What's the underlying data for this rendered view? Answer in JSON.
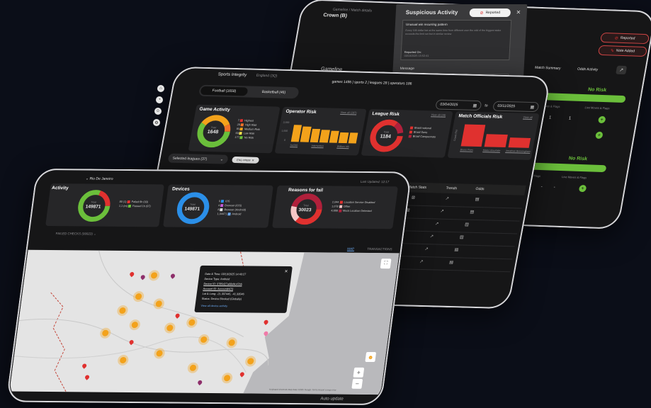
{
  "back": {
    "breadcrumb": "Gameline / Match details",
    "match_title": "Crown (B)",
    "section_gameline": "Gameline",
    "tabs": [
      "Match Summary",
      "Odds Activity"
    ],
    "badge_reported": "Reported",
    "badge_note_added": "Note Added",
    "no_risk": "No Risk",
    "col_left": "Live Moves & Flags",
    "col_right": "Live Moves & Flags",
    "values": [
      "1",
      "1",
      "1",
      "1",
      "-",
      "-",
      "-",
      "-"
    ]
  },
  "modal": {
    "title": "Suspicious Activity",
    "status": "Reported",
    "subtitle": "Unusual win recurring pattern",
    "body": "Every 100 dollar bet at the same time from different user the odd of the biggest stake exceeds the limit set but in similar review",
    "reported_on_label": "Reported On:",
    "reported_on_value": "03/10/2025 15:52:41",
    "message_label": "Message"
  },
  "mid": {
    "app_title": "Sports Integrity",
    "league_filter": "England (3Q)",
    "stats_line": "games 1496 | sports 2 | leagues 28 | operators 186",
    "toggle": [
      {
        "label": "Football (1658)"
      },
      {
        "label": "Basketball (46)"
      }
    ],
    "date_from": "03/04/2025",
    "date_to_label": "to",
    "date_to": "03/11/2025",
    "game_activity": {
      "title": "Game Activity",
      "total_label": "Total",
      "total": "1648",
      "legend": [
        {
          "count": "7",
          "label": "Highest",
          "color": "#e0312f"
        },
        {
          "count": "28",
          "label": "High Risk",
          "color": "#f0722a"
        },
        {
          "count": "93",
          "label": "Medium Risk",
          "color": "#f3a21b"
        },
        {
          "count": "69",
          "label": "Low Risk",
          "color": "#f4e04d"
        },
        {
          "count": "177",
          "label": "No Risk",
          "color": "#6bbf3b"
        }
      ]
    },
    "operator_risk": {
      "title": "Operator Risk",
      "view_all": "View all (187)",
      "ticks": [
        "2,000",
        "1,000",
        "0"
      ],
      "bar_labels": [
        "bet365",
        "Interwetten",
        "William Hill"
      ]
    },
    "league_risk": {
      "title": "League Risk",
      "view_all": "View all (28)",
      "total_label": "Total",
      "total": "1184",
      "legend": [
        "Brasil national",
        "Brasil Serie",
        "Brasil Campeonato"
      ]
    },
    "officials_risk": {
      "title": "Match Officials Risk",
      "view_all": "View all",
      "axis": "Count (%)",
      "bar_labels": [
        "Bruno Pires",
        "Mateo Bourlotte",
        "Jonathan Benningham"
      ]
    },
    "selected_leagues": "Selected leagues (37)",
    "chip": "ENG PREM",
    "table_headers": [
      "Match Stats",
      "Trends",
      "Odds"
    ]
  },
  "front": {
    "city_filter": "Rio De Janeiro",
    "activity": {
      "title": "Activity",
      "total_label": "Total",
      "total": "149871",
      "legend": [
        {
          "count": "80 (1)",
          "label": "Failed 6h (03)",
          "color": "#e0312f"
        },
        {
          "count": "1,1 (m)",
          "label": "Passed 1h (97)",
          "color": "#6bbf3b"
        }
      ]
    },
    "devices": {
      "title": "Devices",
      "total_label": "Total",
      "total": "149871",
      "legend": [
        {
          "count": "0",
          "label": "iOS",
          "color": "#2b8fe8"
        },
        {
          "count": "4",
          "label": "Browser (iOS)",
          "color": "#c25ad6"
        },
        {
          "count": "8",
          "label": "Browser (Android)",
          "color": "#e0e0e0"
        },
        {
          "count": "1,04471",
          "label": "Android",
          "color": "#6aa8f0"
        }
      ]
    },
    "reasons": {
      "title": "Reasons for fail",
      "last_updated": "Last Updated: 12:17",
      "total_label": "Total",
      "total": "30023",
      "legend": [
        {
          "count": "2,044",
          "label": "Location Service Disabled",
          "color": "#e0312f"
        },
        {
          "count": "1,078",
          "label": "Other",
          "color": "#f5c6c6"
        },
        {
          "count": "4,888",
          "label": "Mock Location Detected",
          "color": "#b0203b"
        }
      ]
    },
    "failed_checks": "FAILED CHECKS (99923)",
    "map_tabs": [
      "MAP",
      "TRANSACTIONS"
    ],
    "popup": {
      "date_time": "Date & Time: 03/10/2025 14:43:27",
      "device_type": "Device Type: Android",
      "device_id": "Device ID: 0785d27a08d4c47b6",
      "account_id": "Account ID: Account#470",
      "lat_long": "Lat & Long: -21.337445, -41.33546",
      "status": "Status: Device Blocked (Globally)",
      "link": "View all device activity"
    },
    "attribution": "Keyboard shortcuts   Map data ©2025 Google   Terms   Report a map error",
    "auto_update": "Auto update"
  },
  "colors": {
    "no_risk": "#6bbf3b",
    "high": "#e0312f",
    "medium": "#f3a21b",
    "accent_blue": "#2b8fe8"
  }
}
